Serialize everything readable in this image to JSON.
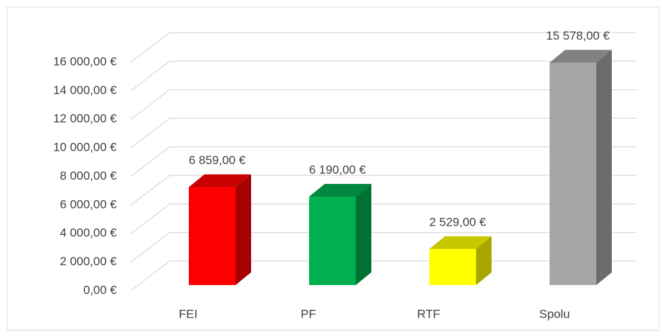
{
  "chart_data": {
    "type": "bar3d",
    "categories": [
      "FEI",
      "PF",
      "RTF",
      "Spolu"
    ],
    "values": [
      6859,
      6190,
      2529,
      15578
    ],
    "value_labels": [
      "6 859,00 €",
      "6 190,00 €",
      "2 529,00 €",
      "15 578,00 €"
    ],
    "colors": [
      "#ff0000",
      "#00b050",
      "#ffff00",
      "#a6a6a6"
    ],
    "ylim": [
      0,
      16000
    ],
    "yticks": [
      {
        "value": 0,
        "label": "0,00 €"
      },
      {
        "value": 2000,
        "label": "2 000,00 €"
      },
      {
        "value": 4000,
        "label": "4 000,00 €"
      },
      {
        "value": 6000,
        "label": "6 000,00 €"
      },
      {
        "value": 8000,
        "label": "8 000,00 €"
      },
      {
        "value": 10000,
        "label": "10 000,00 €"
      },
      {
        "value": 12000,
        "label": "12 000,00 €"
      },
      {
        "value": 14000,
        "label": "14 000,00 €"
      },
      {
        "value": 16000,
        "label": "16 000,00 €"
      }
    ],
    "grid": true
  }
}
